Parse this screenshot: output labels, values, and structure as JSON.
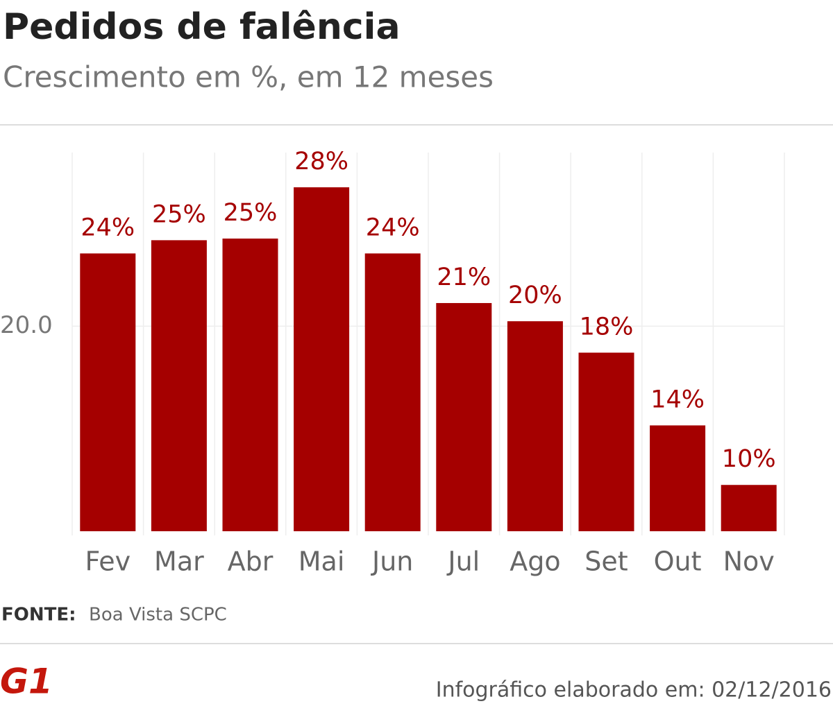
{
  "chart_data": {
    "type": "bar",
    "title": "Pedidos de falência",
    "subtitle": "Crescimento em %, em 12 meses",
    "categories": [
      "Fev",
      "Mar",
      "Abr",
      "Mai",
      "Jun",
      "Jul",
      "Ago",
      "Set",
      "Out",
      "Nov"
    ],
    "values": [
      24.4,
      25.2,
      25.3,
      28.4,
      24.4,
      21.4,
      20.3,
      18.4,
      14.0,
      10.4
    ],
    "value_labels": [
      "24%",
      "25%",
      "25%",
      "28%",
      "24%",
      "21%",
      "20%",
      "18%",
      "14%",
      "10%"
    ],
    "color": "#a50000",
    "ylim": [
      7.6,
      30.5
    ],
    "yticks": [
      {
        "value": 20,
        "label": "20.0"
      }
    ],
    "grid": true,
    "source_label": "FONTE:",
    "source": "Boa Vista SCPC",
    "logo": "G1",
    "footer": "Infográfico elaborado em: 02/12/2016"
  }
}
